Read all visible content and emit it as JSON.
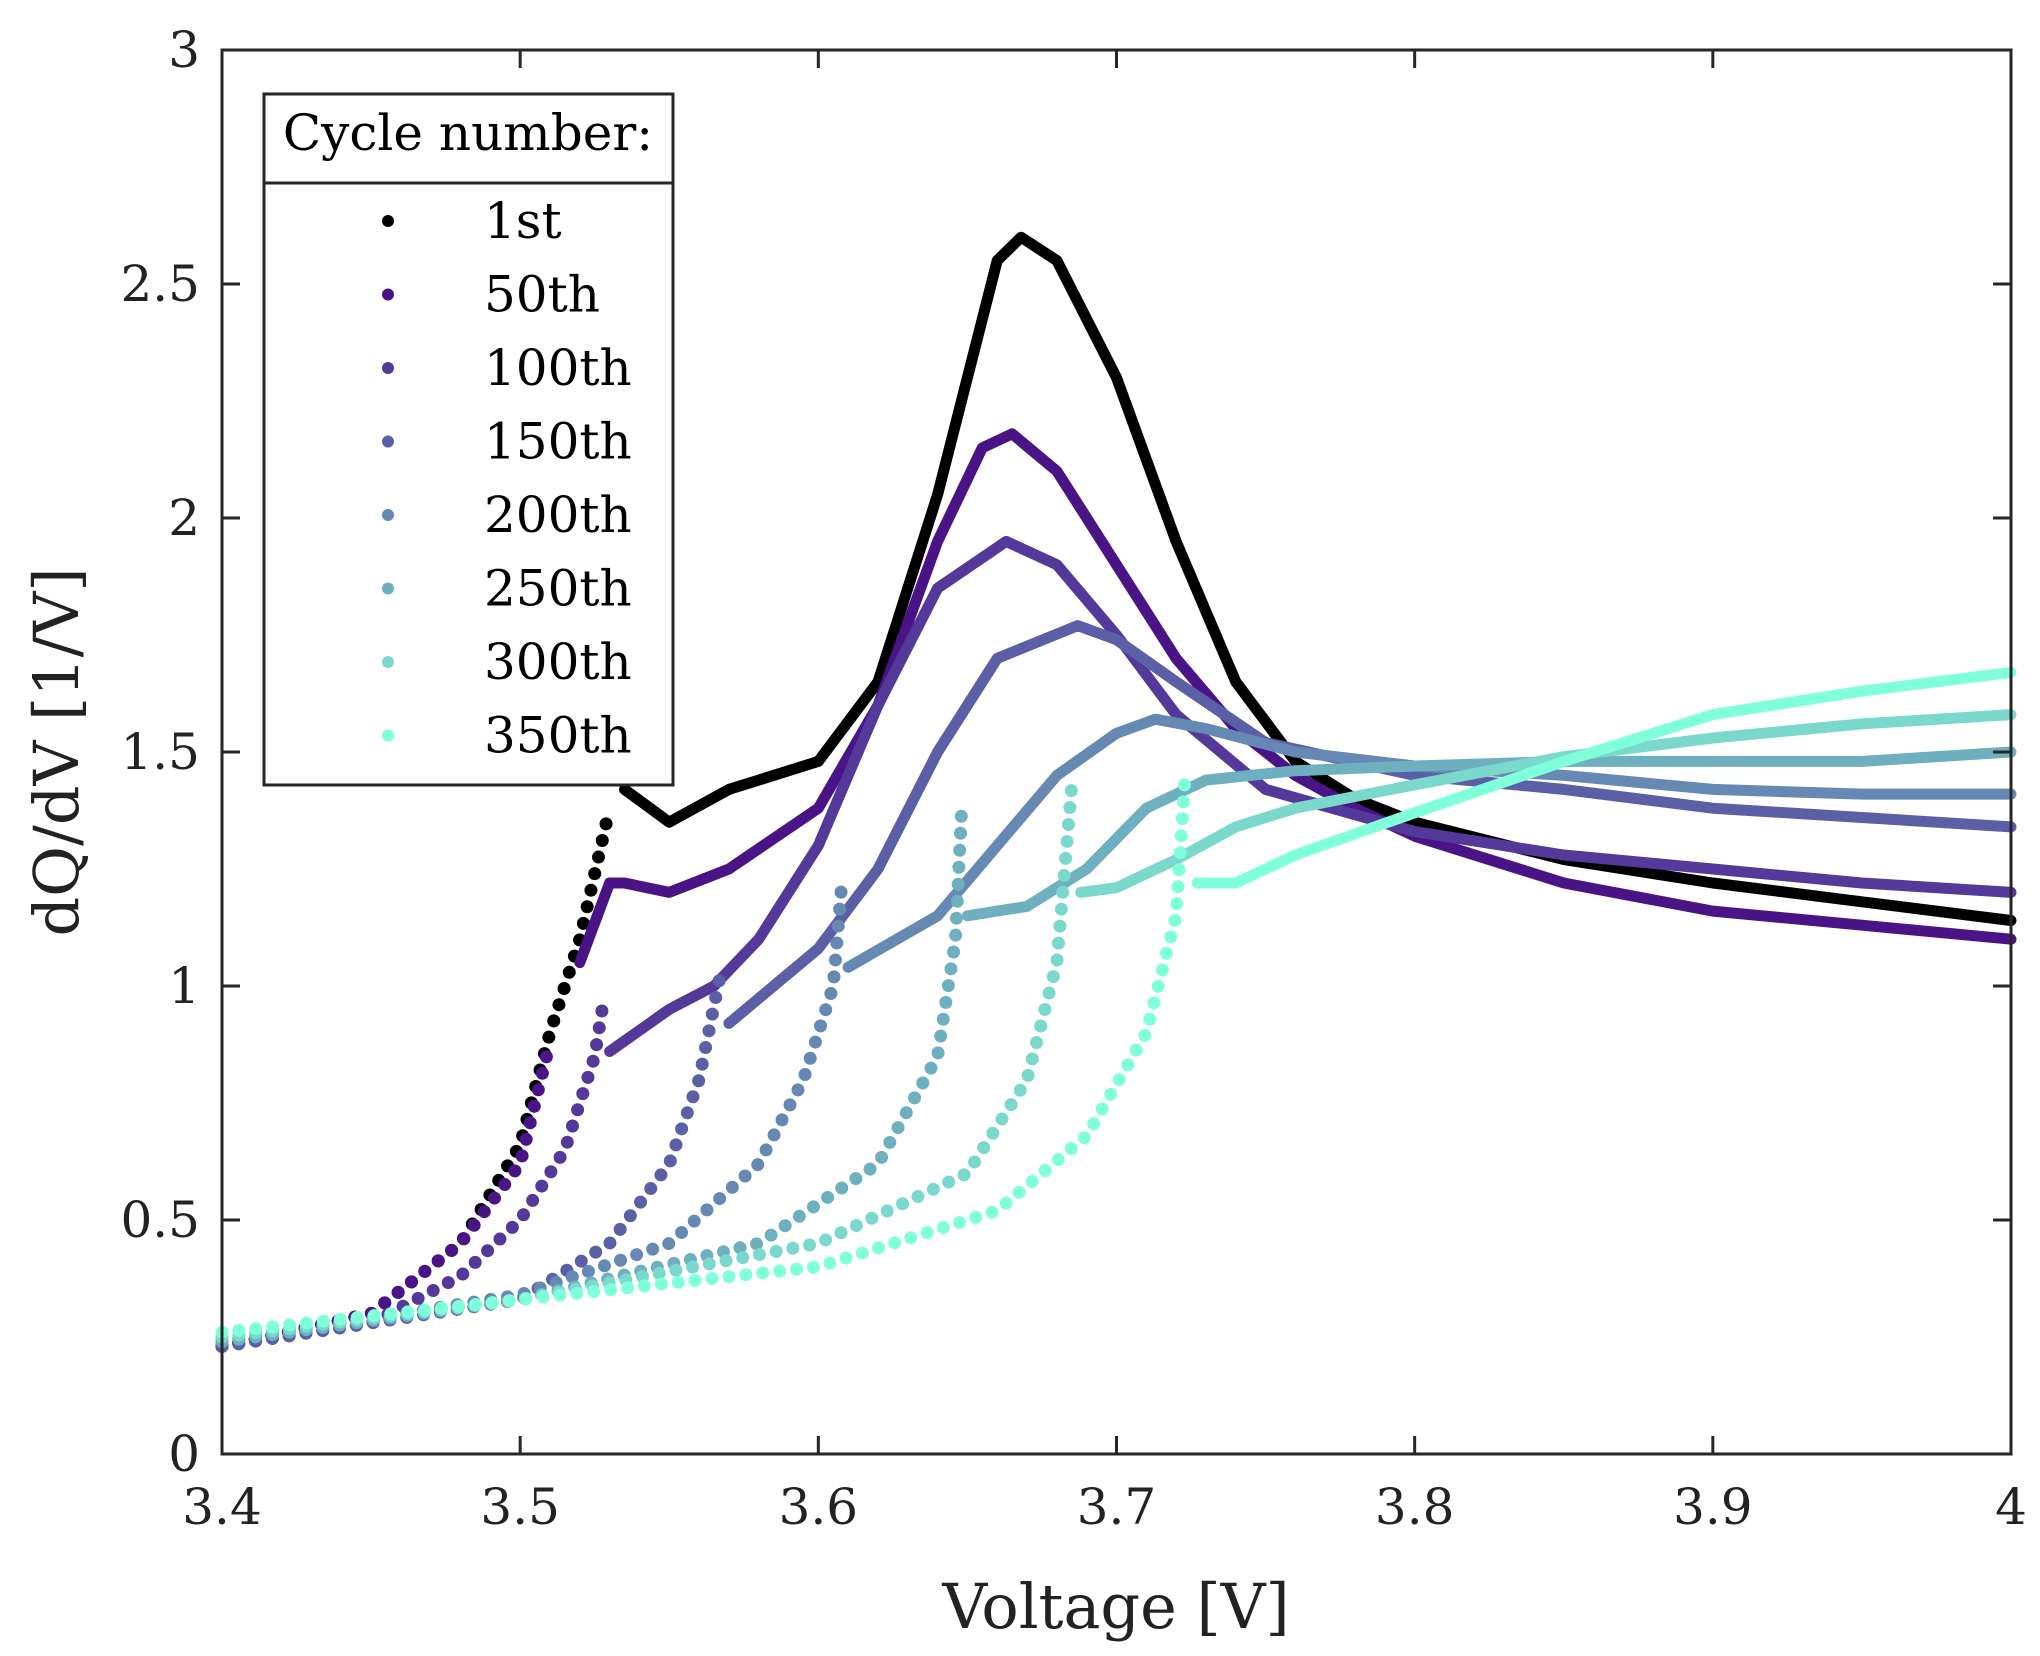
{
  "chart_data": {
    "type": "line",
    "title": "",
    "xlabel": "Voltage [V]",
    "ylabel": "dQ/dV [1/V]",
    "xlim": [
      3.4,
      4.0
    ],
    "ylim": [
      0,
      3
    ],
    "xticks": [
      "3.4",
      "3.5",
      "3.6",
      "3.7",
      "3.8",
      "3.9",
      "4"
    ],
    "yticks": [
      "0",
      "0.5",
      "1",
      "1.5",
      "2",
      "2.5",
      "3"
    ],
    "grid": false,
    "legend": {
      "title": "Cycle number:",
      "placement": "top-left"
    },
    "series": [
      {
        "name": "1st",
        "color": "#000000",
        "dotted_until": 3.53,
        "points": [
          [
            3.4,
            0.23
          ],
          [
            3.45,
            0.3
          ],
          [
            3.48,
            0.45
          ],
          [
            3.5,
            0.66
          ],
          [
            3.51,
            0.9
          ],
          [
            3.52,
            1.1
          ],
          [
            3.53,
            1.38
          ],
          [
            3.535,
            1.42
          ],
          [
            3.55,
            1.35
          ],
          [
            3.57,
            1.42
          ],
          [
            3.58,
            1.44
          ],
          [
            3.6,
            1.48
          ],
          [
            3.62,
            1.65
          ],
          [
            3.64,
            2.05
          ],
          [
            3.66,
            2.55
          ],
          [
            3.668,
            2.6
          ],
          [
            3.68,
            2.55
          ],
          [
            3.7,
            2.3
          ],
          [
            3.72,
            1.95
          ],
          [
            3.74,
            1.65
          ],
          [
            3.76,
            1.48
          ],
          [
            3.78,
            1.4
          ],
          [
            3.8,
            1.35
          ],
          [
            3.85,
            1.27
          ],
          [
            3.9,
            1.22
          ],
          [
            3.95,
            1.18
          ],
          [
            4.0,
            1.14
          ]
        ]
      },
      {
        "name": "50th",
        "color": "#4a1486",
        "dotted_until": 3.515,
        "points": [
          [
            3.4,
            0.23
          ],
          [
            3.45,
            0.3
          ],
          [
            3.48,
            0.45
          ],
          [
            3.5,
            0.62
          ],
          [
            3.51,
            0.88
          ],
          [
            3.52,
            1.05
          ],
          [
            3.53,
            1.22
          ],
          [
            3.535,
            1.22
          ],
          [
            3.55,
            1.2
          ],
          [
            3.57,
            1.25
          ],
          [
            3.6,
            1.38
          ],
          [
            3.62,
            1.6
          ],
          [
            3.64,
            1.95
          ],
          [
            3.655,
            2.15
          ],
          [
            3.665,
            2.18
          ],
          [
            3.68,
            2.1
          ],
          [
            3.7,
            1.9
          ],
          [
            3.72,
            1.7
          ],
          [
            3.74,
            1.55
          ],
          [
            3.76,
            1.45
          ],
          [
            3.78,
            1.38
          ],
          [
            3.8,
            1.32
          ],
          [
            3.85,
            1.22
          ],
          [
            3.9,
            1.16
          ],
          [
            3.95,
            1.13
          ],
          [
            4.0,
            1.1
          ]
        ]
      },
      {
        "name": "100th",
        "color": "#54399a",
        "dotted_until": 3.529,
        "points": [
          [
            3.4,
            0.23
          ],
          [
            3.45,
            0.28
          ],
          [
            3.48,
            0.38
          ],
          [
            3.5,
            0.5
          ],
          [
            3.515,
            0.65
          ],
          [
            3.525,
            0.85
          ],
          [
            3.528,
            0.97
          ],
          [
            3.53,
            0.86
          ],
          [
            3.55,
            0.95
          ],
          [
            3.565,
            1.0
          ],
          [
            3.58,
            1.1
          ],
          [
            3.6,
            1.3
          ],
          [
            3.62,
            1.6
          ],
          [
            3.64,
            1.85
          ],
          [
            3.663,
            1.95
          ],
          [
            3.68,
            1.9
          ],
          [
            3.7,
            1.75
          ],
          [
            3.72,
            1.58
          ],
          [
            3.75,
            1.42
          ],
          [
            3.8,
            1.33
          ],
          [
            3.85,
            1.28
          ],
          [
            3.9,
            1.25
          ],
          [
            3.95,
            1.22
          ],
          [
            4.0,
            1.2
          ]
        ]
      },
      {
        "name": "150th",
        "color": "#5b5fa5",
        "dotted_until": 3.568,
        "points": [
          [
            3.4,
            0.23
          ],
          [
            3.5,
            0.33
          ],
          [
            3.53,
            0.45
          ],
          [
            3.55,
            0.62
          ],
          [
            3.56,
            0.8
          ],
          [
            3.567,
            1.02
          ],
          [
            3.57,
            0.92
          ],
          [
            3.6,
            1.08
          ],
          [
            3.62,
            1.25
          ],
          [
            3.64,
            1.5
          ],
          [
            3.66,
            1.7
          ],
          [
            3.687,
            1.77
          ],
          [
            3.7,
            1.74
          ],
          [
            3.72,
            1.65
          ],
          [
            3.75,
            1.52
          ],
          [
            3.8,
            1.45
          ],
          [
            3.85,
            1.42
          ],
          [
            3.9,
            1.38
          ],
          [
            3.95,
            1.36
          ],
          [
            4.0,
            1.34
          ]
        ]
      },
      {
        "name": "200th",
        "color": "#6589b2",
        "dotted_until": 3.609,
        "points": [
          [
            3.4,
            0.24
          ],
          [
            3.5,
            0.34
          ],
          [
            3.55,
            0.45
          ],
          [
            3.58,
            0.62
          ],
          [
            3.595,
            0.8
          ],
          [
            3.605,
            1.0
          ],
          [
            3.608,
            1.23
          ],
          [
            3.61,
            1.04
          ],
          [
            3.64,
            1.15
          ],
          [
            3.66,
            1.3
          ],
          [
            3.68,
            1.45
          ],
          [
            3.7,
            1.54
          ],
          [
            3.713,
            1.57
          ],
          [
            3.73,
            1.55
          ],
          [
            3.76,
            1.5
          ],
          [
            3.8,
            1.47
          ],
          [
            3.85,
            1.45
          ],
          [
            3.9,
            1.42
          ],
          [
            3.95,
            1.41
          ],
          [
            4.0,
            1.41
          ]
        ]
      },
      {
        "name": "250th",
        "color": "#6eb0bf",
        "dotted_until": 3.649,
        "points": [
          [
            3.4,
            0.24
          ],
          [
            3.5,
            0.33
          ],
          [
            3.58,
            0.45
          ],
          [
            3.62,
            0.62
          ],
          [
            3.64,
            0.85
          ],
          [
            3.646,
            1.1
          ],
          [
            3.648,
            1.37
          ],
          [
            3.65,
            1.15
          ],
          [
            3.67,
            1.17
          ],
          [
            3.69,
            1.25
          ],
          [
            3.71,
            1.38
          ],
          [
            3.73,
            1.44
          ],
          [
            3.76,
            1.46
          ],
          [
            3.8,
            1.47
          ],
          [
            3.85,
            1.48
          ],
          [
            3.9,
            1.48
          ],
          [
            3.95,
            1.48
          ],
          [
            4.0,
            1.5
          ]
        ]
      },
      {
        "name": "300th",
        "color": "#7ad8cc",
        "dotted_until": 3.686,
        "points": [
          [
            3.4,
            0.25
          ],
          [
            3.5,
            0.33
          ],
          [
            3.6,
            0.45
          ],
          [
            3.65,
            0.6
          ],
          [
            3.67,
            0.8
          ],
          [
            3.68,
            1.05
          ],
          [
            3.685,
            1.43
          ],
          [
            3.688,
            1.2
          ],
          [
            3.7,
            1.21
          ],
          [
            3.72,
            1.27
          ],
          [
            3.74,
            1.34
          ],
          [
            3.76,
            1.38
          ],
          [
            3.8,
            1.43
          ],
          [
            3.85,
            1.49
          ],
          [
            3.9,
            1.53
          ],
          [
            3.95,
            1.56
          ],
          [
            4.0,
            1.58
          ]
        ]
      },
      {
        "name": "350th",
        "color": "#80ffdb",
        "dotted_until": 3.725,
        "points": [
          [
            3.4,
            0.26
          ],
          [
            3.5,
            0.33
          ],
          [
            3.6,
            0.4
          ],
          [
            3.66,
            0.52
          ],
          [
            3.69,
            0.68
          ],
          [
            3.71,
            0.9
          ],
          [
            3.72,
            1.15
          ],
          [
            3.723,
            1.45
          ],
          [
            3.727,
            1.22
          ],
          [
            3.74,
            1.22
          ],
          [
            3.76,
            1.28
          ],
          [
            3.8,
            1.37
          ],
          [
            3.85,
            1.48
          ],
          [
            3.9,
            1.58
          ],
          [
            3.95,
            1.63
          ],
          [
            4.0,
            1.67
          ]
        ]
      }
    ]
  }
}
